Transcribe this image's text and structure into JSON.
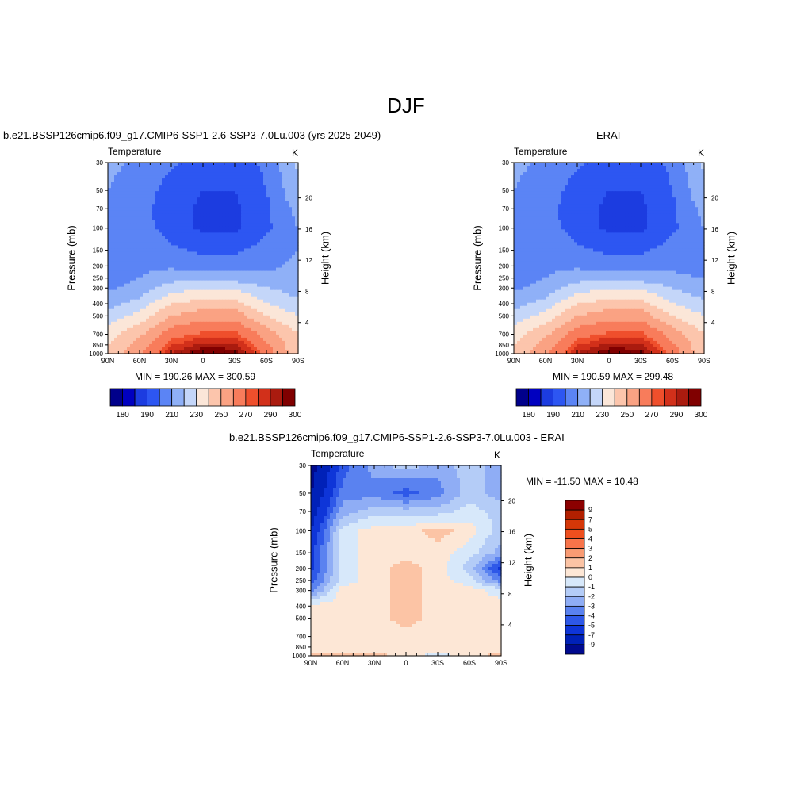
{
  "figure": {
    "title": "DJF"
  },
  "panels": [
    {
      "id": "model",
      "header": "b.e21.BSSP126cmip6.f09_g17.CMIP6-SSP1-2.6-SSP3-7.0Lu.003 (yrs 2025-2049)",
      "left_label": "Temperature",
      "right_label": "K",
      "stats": "MIN = 190.26  MAX = 300.59"
    },
    {
      "id": "erai",
      "header": "ERAI",
      "left_label": "Temperature",
      "right_label": "K",
      "stats": "MIN = 190.59  MAX = 299.48"
    },
    {
      "id": "diff",
      "header": "b.e21.BSSP126cmip6.f09_g17.CMIP6-SSP1-2.6-SSP3-7.0Lu.003 - ERAI",
      "left_label": "Temperature",
      "right_label": "K",
      "stats": "MIN = -11.50  MAX =  10.48"
    }
  ],
  "axes": {
    "ylabel": "Pressure (mb)",
    "y2label": "Height (km)",
    "xticks": [
      "90N",
      "60N",
      "30N",
      "0",
      "30S",
      "60S",
      "90S"
    ],
    "pressure_ticks": [
      "30",
      "50",
      "70",
      "100",
      "150",
      "200",
      "250",
      "300",
      "400",
      "500",
      "700",
      "850",
      "1000"
    ],
    "height_ticks": [
      "20",
      "16",
      "12",
      "8",
      "4"
    ]
  },
  "colorbars": {
    "temperature": {
      "colors": [
        "#00008b",
        "#0000c0",
        "#1c3ce0",
        "#2d56f2",
        "#5b84f5",
        "#8fb0f7",
        "#c4d6f9",
        "#fbe6d8",
        "#fcc5ac",
        "#faa283",
        "#f87c5b",
        "#ef4f2c",
        "#d2301a",
        "#aa1b0f",
        "#800000"
      ],
      "labels": [
        "180",
        "190",
        "210",
        "230",
        "250",
        "270",
        "290",
        "300"
      ]
    },
    "difference": {
      "colors": [
        "#8b0000",
        "#b22000",
        "#d53708",
        "#ee4f1e",
        "#f8744a",
        "#f99b73",
        "#fcc4a5",
        "#fde7d6",
        "#d7e8fa",
        "#b4ccf7",
        "#8fadf5",
        "#5a82f0",
        "#2e58e8",
        "#0e35d8",
        "#0021b8",
        "#000a8f"
      ],
      "labels": [
        "9",
        "7",
        "5",
        "4",
        "3",
        "2",
        "1",
        "0",
        "-1",
        "-2",
        "-3",
        "-4",
        "-5",
        "-7",
        "-9"
      ]
    }
  },
  "chart_data": [
    {
      "type": "heatmap",
      "title": "Temperature",
      "units": "K",
      "xlabel": "",
      "ylabel": "Pressure (mb)",
      "x": [
        "90N",
        "60N",
        "30N",
        "0",
        "30S",
        "60S",
        "90S"
      ],
      "y": [
        30,
        50,
        70,
        100,
        150,
        200,
        250,
        300,
        400,
        500,
        700,
        850,
        1000
      ],
      "values": [
        [
          222,
          218,
          212,
          205,
          205,
          212,
          232
        ],
        [
          220,
          216,
          205,
          200,
          200,
          210,
          228
        ],
        [
          218,
          214,
          204,
          198,
          198,
          208,
          224
        ],
        [
          216,
          214,
          206,
          198,
          198,
          208,
          220
        ],
        [
          214,
          216,
          212,
          208,
          208,
          214,
          220
        ],
        [
          214,
          218,
          218,
          215,
          215,
          218,
          222
        ],
        [
          216,
          220,
          226,
          226,
          226,
          222,
          222
        ],
        [
          218,
          224,
          236,
          238,
          238,
          230,
          226
        ],
        [
          226,
          234,
          250,
          254,
          254,
          240,
          232
        ],
        [
          234,
          244,
          260,
          266,
          266,
          250,
          240
        ],
        [
          246,
          258,
          276,
          282,
          282,
          266,
          250
        ],
        [
          250,
          264,
          284,
          292,
          292,
          272,
          252
        ],
        [
          252,
          268,
          290,
          300,
          298,
          276,
          252
        ]
      ],
      "min": 190.26,
      "max": 300.59
    },
    {
      "type": "heatmap",
      "title": "Temperature",
      "units": "K",
      "xlabel": "",
      "ylabel": "Pressure (mb)",
      "x": [
        "90N",
        "60N",
        "30N",
        "0",
        "30S",
        "60S",
        "90S"
      ],
      "y": [
        30,
        50,
        70,
        100,
        150,
        200,
        250,
        300,
        400,
        500,
        700,
        850,
        1000
      ],
      "values": [
        [
          222,
          218,
          212,
          205,
          205,
          212,
          232
        ],
        [
          220,
          216,
          205,
          200,
          200,
          210,
          228
        ],
        [
          218,
          214,
          204,
          198,
          198,
          208,
          224
        ],
        [
          216,
          214,
          206,
          198,
          198,
          208,
          220
        ],
        [
          214,
          216,
          212,
          208,
          208,
          214,
          218
        ],
        [
          214,
          218,
          218,
          215,
          215,
          218,
          216
        ],
        [
          216,
          220,
          226,
          226,
          226,
          222,
          220
        ],
        [
          218,
          224,
          236,
          238,
          238,
          230,
          224
        ],
        [
          226,
          234,
          250,
          254,
          254,
          240,
          232
        ],
        [
          234,
          244,
          260,
          266,
          266,
          250,
          240
        ],
        [
          246,
          258,
          276,
          282,
          282,
          266,
          250
        ],
        [
          250,
          264,
          284,
          292,
          292,
          272,
          252
        ],
        [
          252,
          268,
          290,
          299,
          298,
          276,
          252
        ]
      ],
      "min": 190.59,
      "max": 299.48
    },
    {
      "type": "heatmap",
      "title": "Temperature",
      "units": "K",
      "xlabel": "",
      "ylabel": "Pressure (mb)",
      "x": [
        "90N",
        "60N",
        "30N",
        "0",
        "30S",
        "60S",
        "90S"
      ],
      "y": [
        30,
        50,
        70,
        100,
        150,
        200,
        250,
        300,
        400,
        500,
        700,
        850,
        1000
      ],
      "values": [
        [
          -9,
          -4,
          -2,
          -1,
          -2,
          -1,
          -2
        ],
        [
          -8,
          -3,
          -3,
          -4,
          -3,
          -1,
          -2
        ],
        [
          -7,
          -2,
          -1,
          -1,
          -1,
          0,
          -1
        ],
        [
          -6,
          0,
          1,
          1,
          2,
          1,
          -1
        ],
        [
          -5,
          0,
          1,
          1,
          1,
          0,
          -2
        ],
        [
          -5,
          0,
          1,
          2,
          1,
          -1,
          -5
        ],
        [
          -4,
          0,
          1,
          2,
          1,
          0,
          -3
        ],
        [
          -3,
          1,
          1,
          2,
          1,
          1,
          0
        ],
        [
          1,
          1,
          1,
          2,
          1,
          1,
          1
        ],
        [
          1,
          1,
          1,
          2,
          1,
          1,
          1
        ],
        [
          1,
          1,
          1,
          1,
          1,
          1,
          1
        ],
        [
          1,
          1,
          1,
          1,
          1,
          1,
          1
        ],
        [
          2,
          2,
          2,
          1,
          0,
          1,
          2
        ]
      ],
      "min": -11.5,
      "max": 10.48
    }
  ]
}
